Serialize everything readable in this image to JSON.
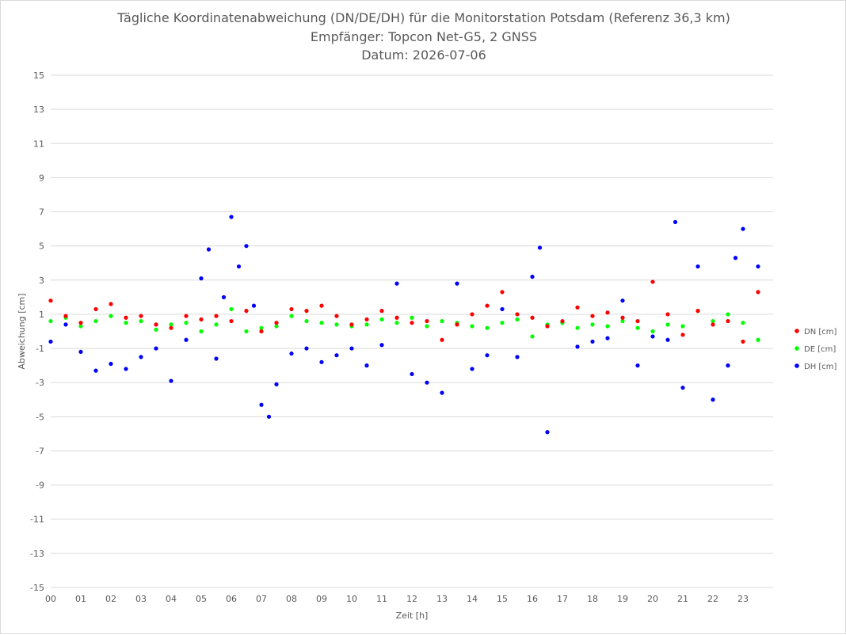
{
  "chart_data": {
    "type": "scatter",
    "title": "Tägliche Koordinatenabweichung (DN/DE/DH) für die Monitorstation Potsdam (Referenz 36,3 km)",
    "subtitle": "Empfänger: Topcon Net-G5, 2 GNSS",
    "date_line": "Datum: 2026-07-06",
    "xlabel": "Zeit [h]",
    "ylabel": "Abweichung [cm]",
    "ylim": [
      -15,
      15
    ],
    "xlim": [
      0,
      24
    ],
    "x_ticks": [
      "00",
      "01",
      "02",
      "03",
      "04",
      "05",
      "06",
      "07",
      "08",
      "09",
      "10",
      "11",
      "12",
      "13",
      "14",
      "15",
      "16",
      "17",
      "18",
      "19",
      "20",
      "21",
      "22",
      "23"
    ],
    "y_ticks": [
      15,
      13,
      11,
      9,
      7,
      5,
      3,
      1,
      -1,
      -3,
      -5,
      -7,
      -9,
      -11,
      -13,
      -15
    ],
    "grid": "horizontal",
    "legend_position": "right",
    "series": [
      {
        "name": "DN [cm]",
        "color": "#ff0000",
        "x": [
          0.0,
          0.5,
          1.0,
          1.5,
          2.0,
          2.5,
          3.0,
          3.5,
          4.0,
          4.5,
          5.0,
          5.5,
          6.0,
          6.5,
          7.0,
          7.5,
          8.0,
          8.5,
          9.0,
          9.5,
          10.0,
          10.5,
          11.0,
          11.5,
          12.0,
          12.5,
          13.0,
          13.5,
          14.0,
          14.5,
          15.0,
          15.5,
          16.0,
          16.5,
          17.0,
          17.5,
          18.0,
          18.5,
          19.0,
          19.5,
          20.0,
          20.5,
          21.0,
          21.5,
          22.0,
          22.5,
          23.0,
          23.5
        ],
        "y": [
          1.8,
          0.9,
          0.5,
          1.3,
          1.6,
          0.8,
          0.9,
          0.4,
          0.2,
          0.9,
          0.7,
          0.9,
          0.6,
          1.2,
          0.0,
          0.5,
          1.3,
          1.2,
          1.5,
          0.9,
          0.4,
          0.7,
          1.2,
          0.8,
          0.5,
          0.6,
          -0.5,
          0.4,
          1.0,
          1.5,
          2.3,
          1.0,
          0.8,
          0.3,
          0.6,
          1.4,
          0.9,
          1.1,
          0.8,
          0.6,
          2.9,
          1.0,
          -0.2,
          1.2,
          0.4,
          0.6,
          -0.6,
          2.3
        ]
      },
      {
        "name": "DE [cm]",
        "color": "#00ff00",
        "x": [
          0.0,
          0.5,
          1.0,
          1.5,
          2.0,
          2.5,
          3.0,
          3.5,
          4.0,
          4.5,
          5.0,
          5.5,
          6.0,
          6.5,
          7.0,
          7.5,
          8.0,
          8.5,
          9.0,
          9.5,
          10.0,
          10.5,
          11.0,
          11.5,
          12.0,
          12.5,
          13.0,
          13.5,
          14.0,
          14.5,
          15.0,
          15.5,
          16.0,
          16.5,
          17.0,
          17.5,
          18.0,
          18.5,
          19.0,
          19.5,
          20.0,
          20.5,
          21.0,
          21.5,
          22.0,
          22.5,
          23.0,
          23.5
        ],
        "y": [
          0.6,
          0.8,
          0.3,
          0.6,
          0.9,
          0.5,
          0.6,
          0.1,
          0.4,
          0.5,
          0.0,
          0.4,
          1.3,
          0.0,
          0.2,
          0.3,
          0.9,
          0.6,
          0.5,
          0.4,
          0.3,
          0.4,
          0.7,
          0.5,
          0.8,
          0.3,
          0.6,
          0.5,
          0.3,
          0.2,
          0.5,
          0.7,
          -0.3,
          0.4,
          0.5,
          0.2,
          0.4,
          0.3,
          0.6,
          0.2,
          0.0,
          0.4,
          0.3,
          1.2,
          0.6,
          1.0,
          0.5,
          -0.5
        ]
      },
      {
        "name": "DH [cm]",
        "color": "#0000ff",
        "x": [
          0.0,
          0.5,
          1.0,
          1.5,
          2.0,
          2.5,
          3.0,
          3.5,
          4.0,
          4.5,
          5.0,
          5.25,
          5.5,
          5.75,
          6.0,
          6.25,
          6.5,
          6.75,
          7.0,
          7.25,
          7.5,
          8.0,
          8.5,
          9.0,
          9.5,
          10.0,
          10.5,
          11.0,
          11.5,
          12.0,
          12.5,
          13.0,
          13.5,
          14.0,
          14.5,
          15.0,
          15.5,
          16.0,
          16.25,
          16.5,
          17.0,
          17.5,
          18.0,
          18.5,
          19.0,
          19.5,
          20.0,
          20.5,
          20.75,
          21.0,
          21.5,
          22.0,
          22.5,
          22.75,
          23.0,
          23.5
        ],
        "y": [
          -0.6,
          0.4,
          -1.2,
          -2.3,
          -1.9,
          -2.2,
          -1.5,
          -1.0,
          -2.9,
          -0.5,
          3.1,
          4.8,
          -1.6,
          2.0,
          6.7,
          3.8,
          5.0,
          1.5,
          -4.3,
          -5.0,
          -3.1,
          -1.3,
          -1.0,
          -1.8,
          -1.4,
          -1.0,
          -2.0,
          -0.8,
          2.8,
          -2.5,
          -3.0,
          -3.6,
          2.8,
          -2.2,
          -1.4,
          1.3,
          -1.5,
          3.2,
          4.9,
          -5.9,
          0.5,
          -0.9,
          -0.6,
          -0.4,
          1.8,
          -2.0,
          -0.3,
          -0.5,
          6.4,
          -3.3,
          3.8,
          -4.0,
          -2.0,
          4.3,
          6.0,
          3.8
        ]
      }
    ]
  }
}
